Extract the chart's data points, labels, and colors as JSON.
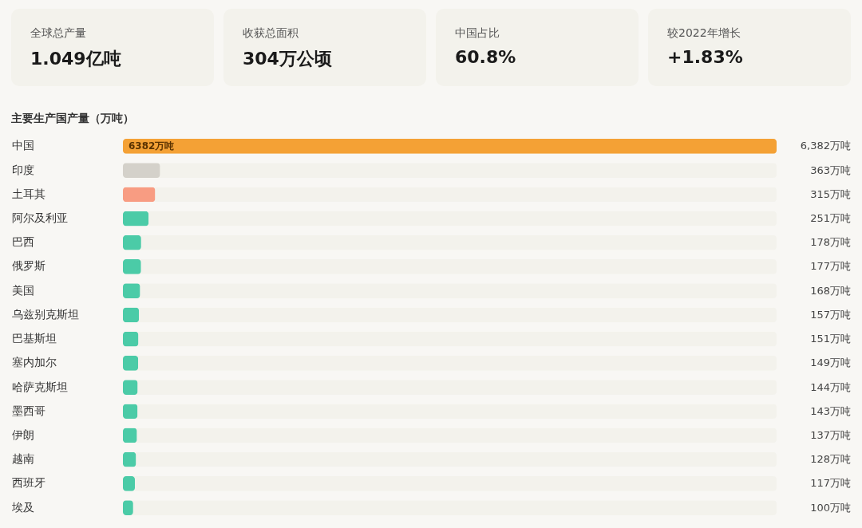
{
  "chart_data": [
    {
      "type": "other",
      "annotations": [
        "全球总产量",
        "1.049亿吨",
        "收获总面积",
        "304万公顷",
        "中国占比",
        "60.8%",
        "较2022年增长",
        "+1.83%"
      ]
    },
    {
      "type": "bar",
      "orientation": "horizontal",
      "title": "主要生产国产量（万吨）",
      "categories": [
        "中国",
        "印度",
        "土耳其",
        "阿尔及利亚",
        "巴西",
        "俄罗斯",
        "美国",
        "乌兹别克斯坦",
        "巴基斯坦",
        "塞内加尔",
        "哈萨克斯坦",
        "墨西哥",
        "伊朗",
        "越南",
        "西班牙",
        "埃及"
      ],
      "values": [
        6382,
        363,
        315,
        251,
        178,
        177,
        168,
        157,
        151,
        149,
        144,
        143,
        137,
        128,
        117,
        100
      ],
      "colors": [
        "#f4a135",
        "#d4d1ca",
        "#f89c82",
        "#4bcba7",
        "#4bcba7",
        "#4bcba7",
        "#4bcba7",
        "#4bcba7",
        "#4bcba7",
        "#4bcba7",
        "#4bcba7",
        "#4bcba7",
        "#4bcba7",
        "#4bcba7",
        "#4bcba7",
        "#4bcba7"
      ],
      "value_labels": [
        "6,382万吨",
        "363万吨",
        "315万吨",
        "251万吨",
        "178万吨",
        "177万吨",
        "168万吨",
        "157万吨",
        "151万吨",
        "149万吨",
        "144万吨",
        "143万吨",
        "137万吨",
        "128万吨",
        "117万吨",
        "100万吨"
      ],
      "annotations": [
        {
          "text": "6382万吨",
          "y": "中国"
        }
      ]
    }
  ]
}
